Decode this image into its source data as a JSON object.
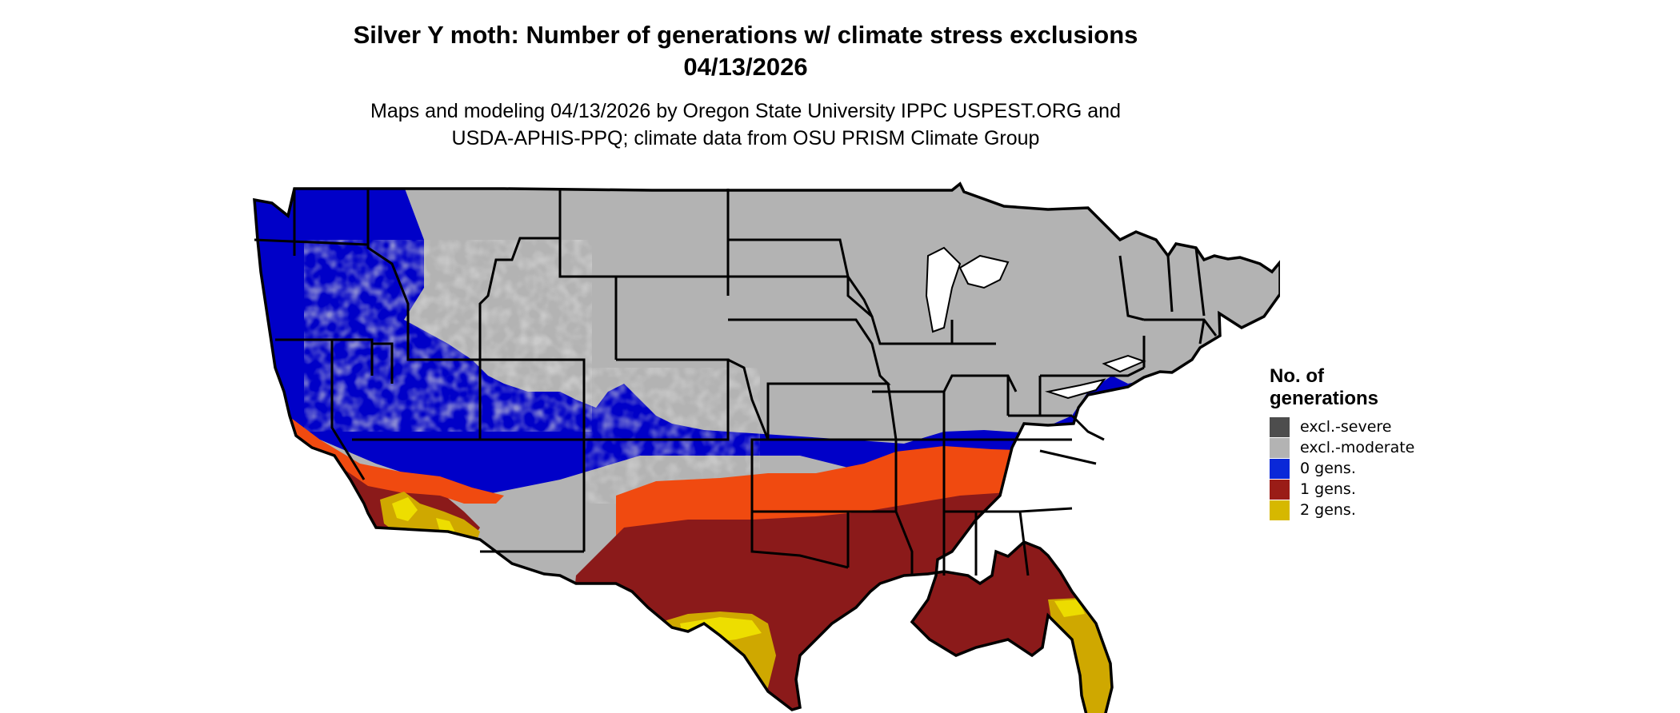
{
  "header": {
    "title_line1": "Silver Y moth: Number of generations w/ climate stress exclusions",
    "title_line2": "04/13/2026",
    "subtitle_line1": "Maps and modeling 04/13/2026 by Oregon State University IPPC USPEST.ORG and",
    "subtitle_line2": "USDA-APHIS-PPQ; climate data from OSU PRISM Climate Group"
  },
  "legend": {
    "title_line1": "No. of",
    "title_line2": "generations",
    "items": [
      {
        "label": "excl.-severe",
        "color": "#4d4d4d"
      },
      {
        "label": "excl.-moderate",
        "color": "#b3b3b3"
      },
      {
        "label": "0 gens.",
        "color": "#0a28d8"
      },
      {
        "label": "1 gens.",
        "color": "#9a1c17"
      },
      {
        "label": "2 gens.",
        "color": "#d6b800"
      }
    ]
  },
  "map": {
    "colors": {
      "excluded_moderate": "#b3b3b3",
      "zero_gens": "#0000c8",
      "one_gen": "#8b1a1a",
      "one_gen_light": "#f04a10",
      "two_gens": "#cfa800",
      "two_gens_bright": "#f2e800",
      "border": "#000000"
    }
  }
}
